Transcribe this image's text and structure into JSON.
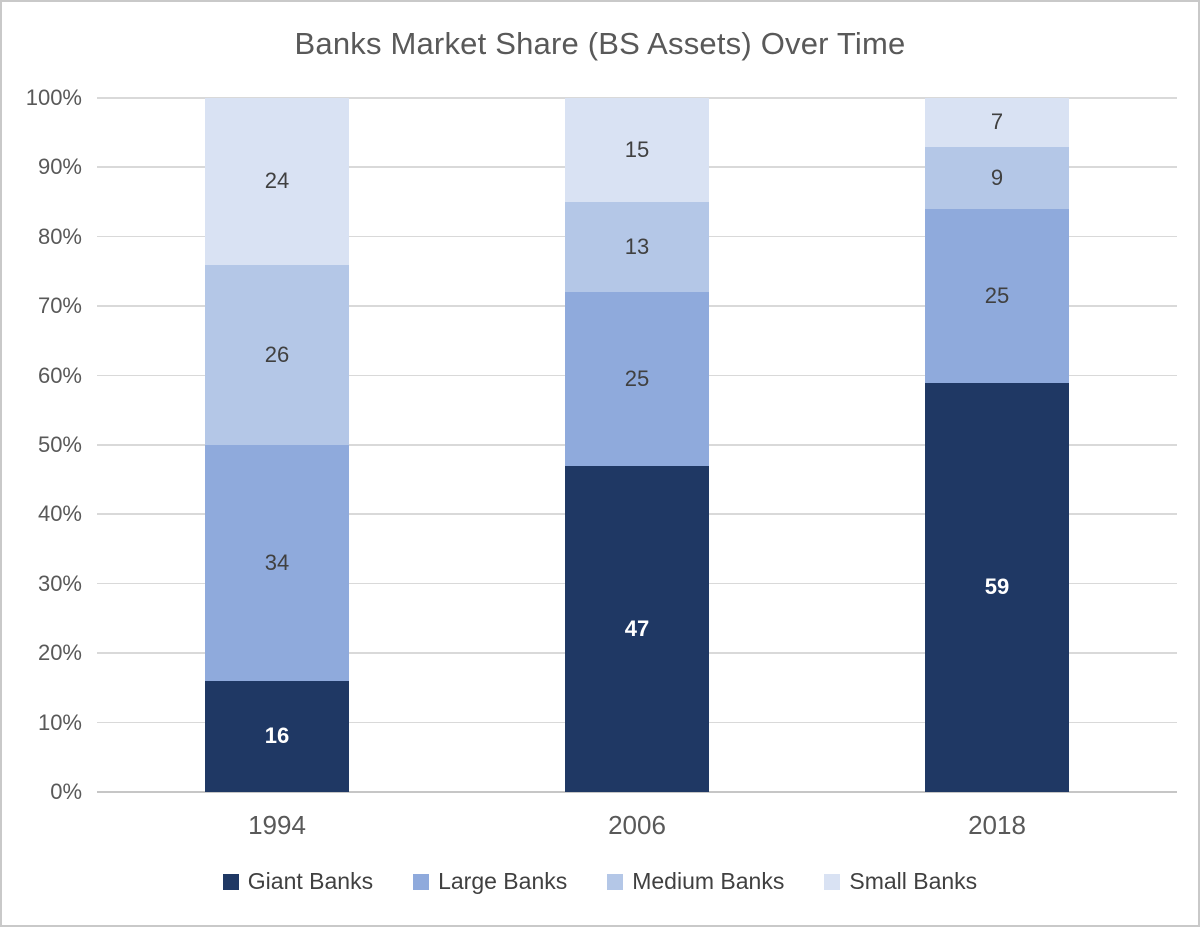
{
  "title": "Banks Market Share (BS Assets) Over Time",
  "colors": {
    "title_text": "#595959",
    "axis_text": "#595959",
    "gridline": "#D9D9D9",
    "frame_border": "#C9C9C9",
    "legend_text": "#404040"
  },
  "chart_data": {
    "type": "bar",
    "variant": "stacked-100-percent",
    "title": "Banks Market Share (BS Assets) Over Time",
    "categories": [
      "1994",
      "2006",
      "2018"
    ],
    "series": [
      {
        "name": "Giant Banks",
        "color": "#1F3864",
        "label_color": "#FFFFFF",
        "label_bold": true,
        "values": [
          16,
          47,
          59
        ]
      },
      {
        "name": "Large Banks",
        "color": "#8FAADC",
        "label_color": "#404040",
        "label_bold": false,
        "values": [
          34,
          25,
          25
        ]
      },
      {
        "name": "Medium Banks",
        "color": "#B4C7E7",
        "label_color": "#404040",
        "label_bold": false,
        "values": [
          26,
          13,
          9
        ]
      },
      {
        "name": "Small Banks",
        "color": "#D9E2F3",
        "label_color": "#404040",
        "label_bold": false,
        "values": [
          24,
          15,
          7
        ]
      }
    ],
    "y_axis": {
      "min": 0,
      "max": 100,
      "step": 10,
      "ticks": [
        "0%",
        "10%",
        "20%",
        "30%",
        "40%",
        "50%",
        "60%",
        "70%",
        "80%",
        "90%",
        "100%"
      ]
    },
    "grid": true,
    "legend_position": "bottom"
  }
}
